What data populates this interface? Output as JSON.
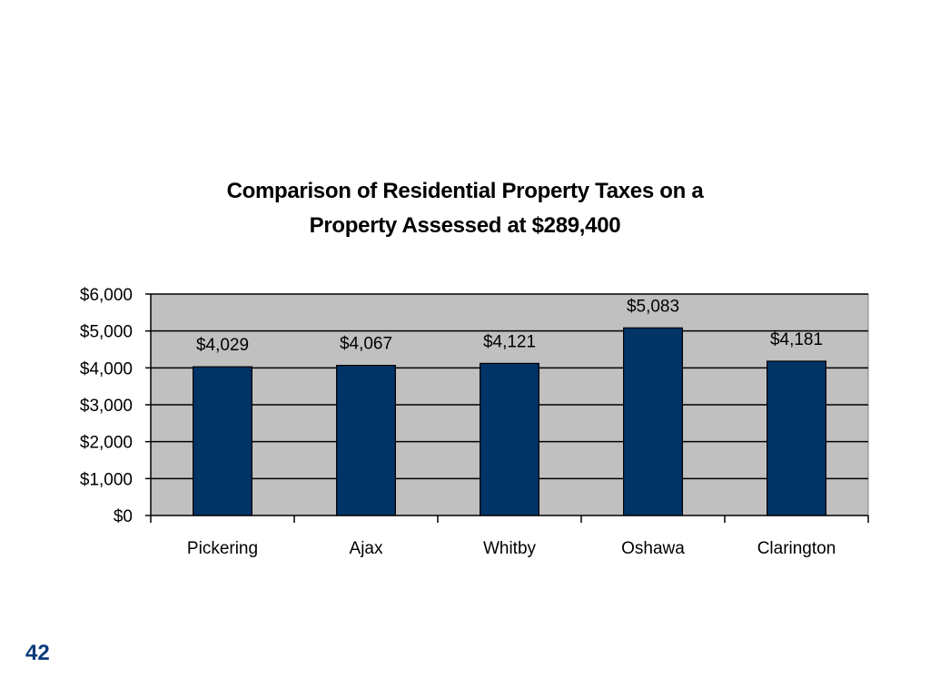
{
  "slide": {
    "page_number": "42"
  },
  "chart_data": {
    "type": "bar",
    "title_lines": [
      "Comparison of Residential Property Taxes on a",
      "Property Assessed at $289,400"
    ],
    "categories": [
      "Pickering",
      "Ajax",
      "Whitby",
      "Oshawa",
      "Clarington"
    ],
    "values": [
      4029,
      4067,
      4121,
      5083,
      4181
    ],
    "value_labels": [
      "$4,029",
      "$4,067",
      "$4,121",
      "$5,083",
      "$4,181"
    ],
    "yticks": [
      0,
      1000,
      2000,
      3000,
      4000,
      5000,
      6000
    ],
    "ytick_labels": [
      "$0",
      "$1,000",
      "$2,000",
      "$3,000",
      "$4,000",
      "$5,000",
      "$6,000"
    ],
    "ylim": [
      0,
      6000
    ],
    "grid": true,
    "colors": {
      "bar": "#003366",
      "plot_background": "#c0c0c0",
      "gridline": "#000000"
    }
  }
}
